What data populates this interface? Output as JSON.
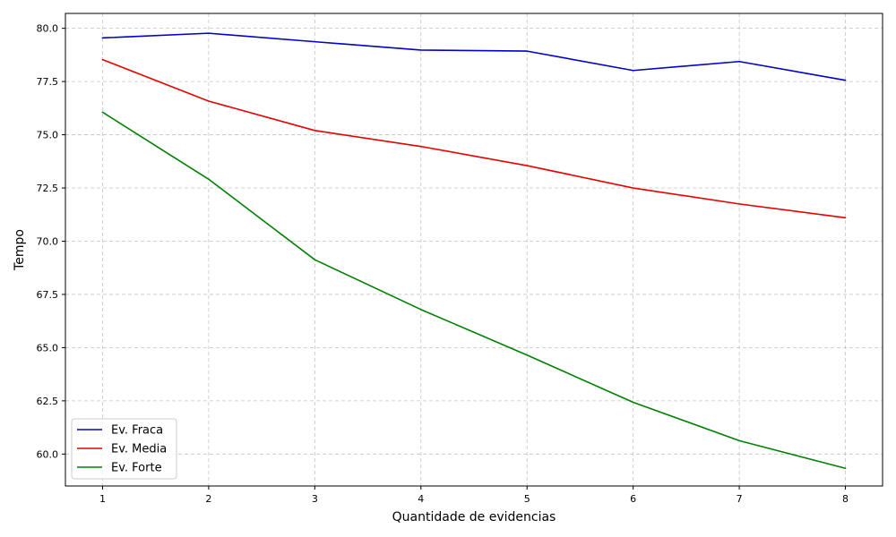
{
  "chart_data": {
    "type": "line",
    "xlabel": "Quantidade de evidencias",
    "ylabel": "Tempo",
    "x": [
      1,
      2,
      3,
      4,
      5,
      6,
      7,
      8
    ],
    "xlim": [
      0.65,
      8.35
    ],
    "ylim": [
      58.5,
      80.7
    ],
    "x_ticks": [
      "1",
      "2",
      "3",
      "4",
      "5",
      "6",
      "7",
      "8"
    ],
    "y_ticks": [
      "60.0",
      "62.5",
      "65.0",
      "67.5",
      "70.0",
      "72.5",
      "75.0",
      "77.5",
      "80.0"
    ],
    "grid": true,
    "legend_position": "lower-left",
    "series": [
      {
        "name": "Ev. Fraca",
        "color": "#0000cc",
        "values": [
          79.55,
          79.77,
          79.37,
          78.98,
          78.93,
          78.02,
          78.44,
          77.56
        ]
      },
      {
        "name": "Ev. Media",
        "color": "#e60000",
        "values": [
          78.53,
          76.58,
          75.2,
          74.45,
          73.55,
          72.5,
          71.75,
          71.1
        ]
      },
      {
        "name": "Ev. Forte",
        "color": "#008000",
        "values": [
          76.06,
          72.91,
          69.13,
          66.79,
          64.65,
          62.43,
          60.63,
          59.33
        ]
      }
    ]
  }
}
